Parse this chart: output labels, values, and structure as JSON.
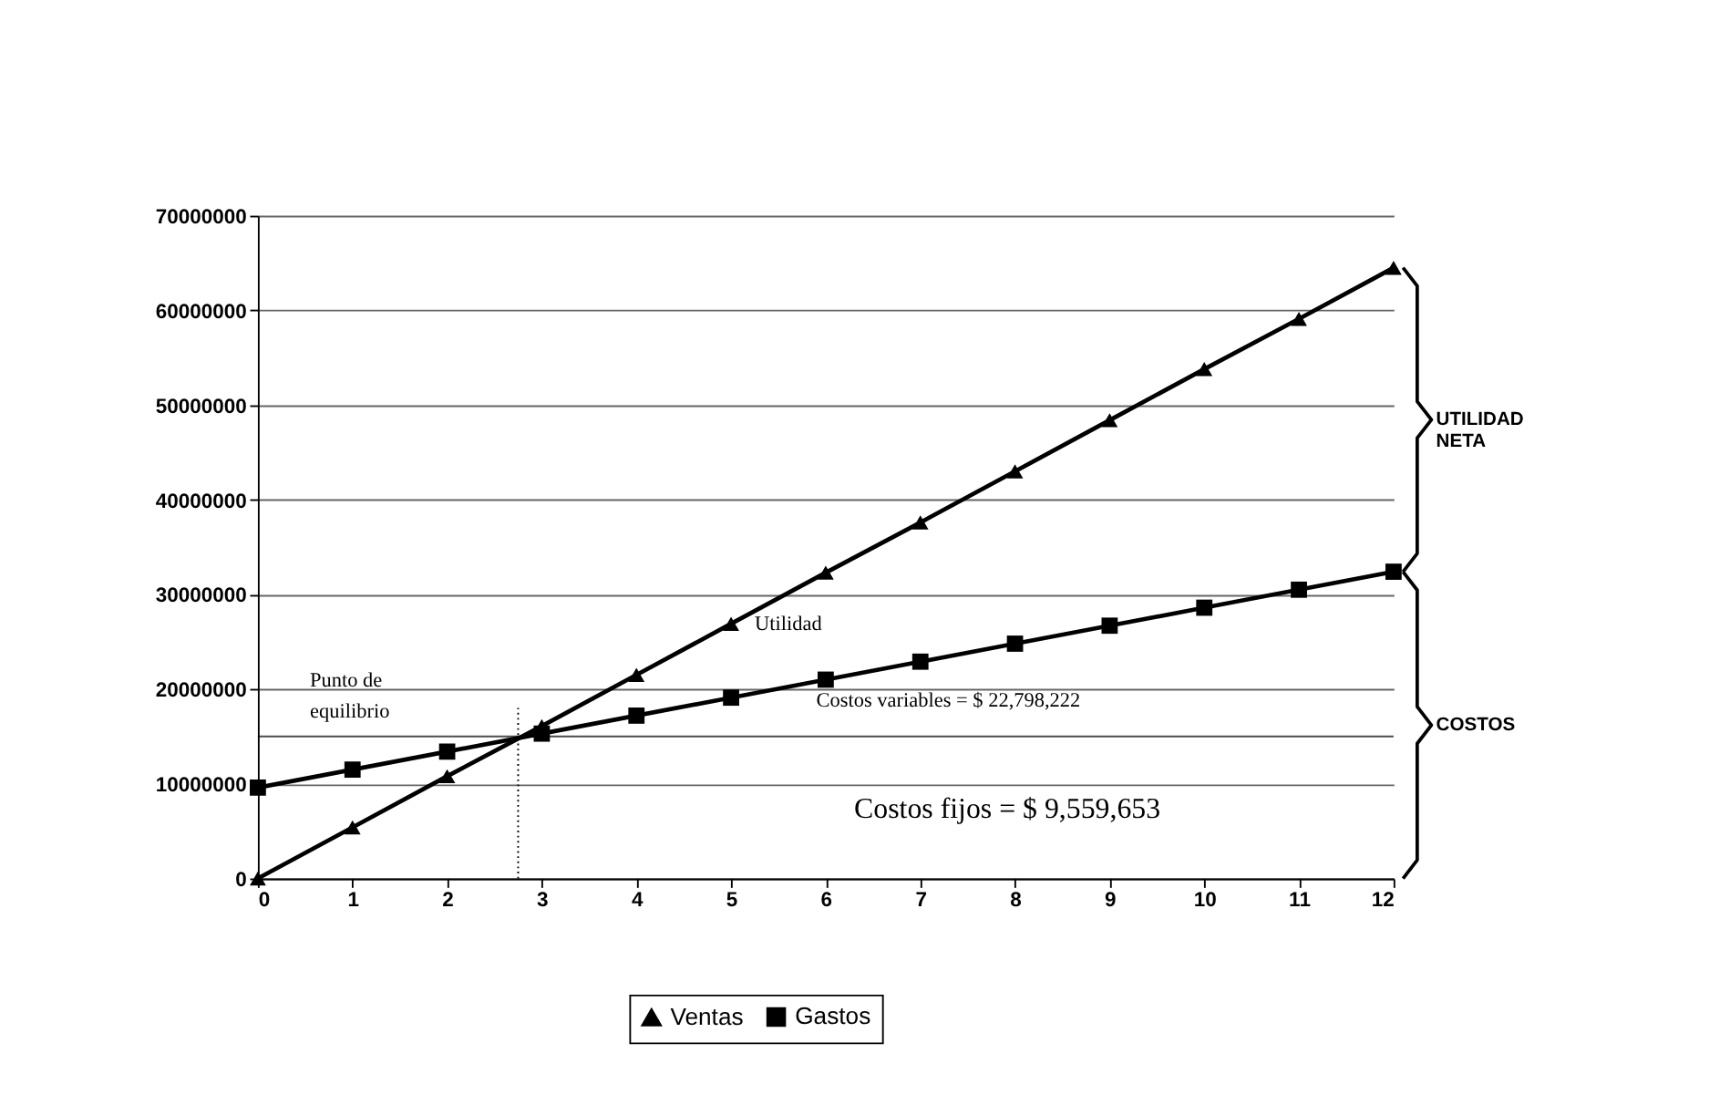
{
  "chart_data": {
    "type": "line",
    "x": [
      0,
      1,
      2,
      3,
      4,
      5,
      6,
      7,
      8,
      9,
      10,
      11,
      12
    ],
    "series": [
      {
        "name": "Ventas",
        "color": "#000000",
        "marker": "triangle",
        "values": [
          0,
          5400000,
          10800000,
          16100000,
          21500000,
          26900000,
          32300000,
          37600000,
          43000000,
          48400000,
          53800000,
          59100000,
          64500000
        ]
      },
      {
        "name": "Gastos",
        "color": "#000000",
        "marker": "square",
        "values": [
          9600000,
          11500000,
          13400000,
          15300000,
          17200000,
          19100000,
          21000000,
          22900000,
          24800000,
          26700000,
          28600000,
          30500000,
          32400000
        ]
      }
    ],
    "xlim": [
      0,
      12
    ],
    "xticks": [
      0,
      1,
      2,
      3,
      4,
      5,
      6,
      7,
      8,
      9,
      10,
      11,
      12
    ],
    "ylim": [
      0,
      70000000
    ],
    "yticks": [
      0,
      10000000,
      20000000,
      30000000,
      40000000,
      50000000,
      60000000,
      70000000
    ],
    "grid": "y",
    "legend": "bottom",
    "line_style": "solid",
    "ref_lines": [
      {
        "axis": "y",
        "value": 15000000,
        "label": null,
        "line_style": "solid"
      },
      {
        "axis": "x",
        "value": 2.75,
        "label": null,
        "line_style": "dotted"
      }
    ],
    "annotations": [
      "Punto de equilibrio",
      "Utilidad",
      "Costos variables = $ 22,798,222",
      "Costos fijos = $ 9,559,653",
      "UTILIDAD NETA",
      "COSTOS"
    ]
  }
}
